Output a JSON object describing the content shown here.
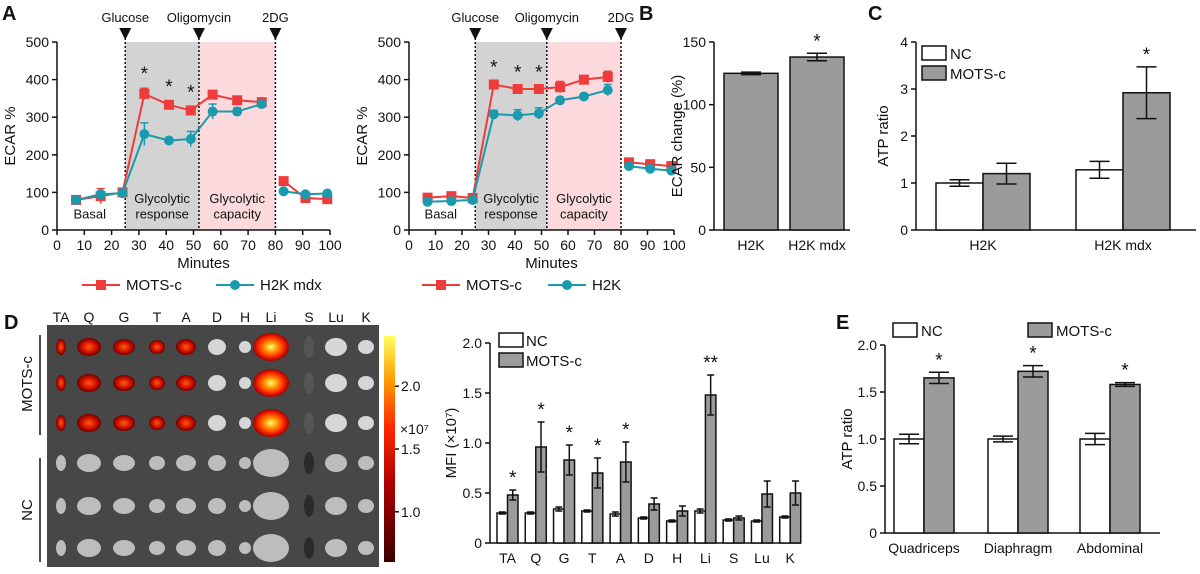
{
  "panels": {
    "A": "A",
    "B": "B",
    "C": "C",
    "D": "D",
    "E": "E"
  },
  "colors": {
    "mots": "#ee3b3b",
    "h2kmdx": "#1a9aad",
    "h2k": "#1a9aad",
    "nc": "#ffffff",
    "motsc_bar": "#9b9b9b",
    "glycolytic_response_shade": "#d3d3d3",
    "glycolytic_capacity_shade": "#fbd9dc"
  },
  "chart_data": [
    {
      "id": "A1",
      "type": "line",
      "xlabel": "Minutes",
      "ylabel": "ECAR %",
      "xlim": [
        0,
        100
      ],
      "ylim": [
        0,
        500
      ],
      "xticks": [
        "0",
        "10",
        "20",
        "30",
        "40",
        "50",
        "60",
        "70",
        "80",
        "90",
        "100"
      ],
      "yticks": [
        "0",
        "100",
        "200",
        "300",
        "400",
        "500"
      ],
      "injections": [
        {
          "label": "Glucose",
          "x": 25
        },
        {
          "label": "Oligomycin",
          "x": 52
        },
        {
          "label": "2DG",
          "x": 80
        }
      ],
      "phases": [
        {
          "label1": "Basal",
          "label2": ""
        },
        {
          "label1": "Glycolytic",
          "label2": "response"
        },
        {
          "label1": "Glycolytic",
          "label2": "capacity"
        }
      ],
      "series": [
        {
          "name": "MOTS-c",
          "color": "#ee3b3b",
          "marker": "square",
          "x": [
            7,
            16,
            24,
            32,
            41,
            49,
            57,
            66,
            75,
            83,
            91,
            99
          ],
          "y": [
            80,
            90,
            100,
            362,
            333,
            318,
            360,
            345,
            340,
            130,
            85,
            82
          ],
          "err": [
            4,
            20,
            5,
            15,
            10,
            10,
            8,
            8,
            8,
            5,
            5,
            4
          ]
        },
        {
          "name": "H2K mdx",
          "color": "#1a9aad",
          "marker": "circle",
          "x": [
            7,
            16,
            24,
            32,
            41,
            49,
            57,
            66,
            75,
            83,
            91,
            99
          ],
          "y": [
            80,
            95,
            98,
            255,
            238,
            242,
            315,
            315,
            335,
            103,
            95,
            97
          ],
          "err": [
            4,
            6,
            5,
            30,
            8,
            20,
            20,
            10,
            8,
            5,
            5,
            4
          ]
        }
      ],
      "significance": [
        {
          "x": 32,
          "label": "*"
        },
        {
          "x": 41,
          "label": "*"
        },
        {
          "x": 49,
          "label": "*"
        }
      ]
    },
    {
      "id": "A2",
      "type": "line",
      "xlabel": "Minutes",
      "ylabel": "ECAR %",
      "xlim": [
        0,
        100
      ],
      "ylim": [
        0,
        500
      ],
      "xticks": [
        "0",
        "10",
        "20",
        "30",
        "40",
        "50",
        "60",
        "70",
        "80",
        "90",
        "100"
      ],
      "yticks": [
        "0",
        "100",
        "200",
        "300",
        "400",
        "500"
      ],
      "injections": [
        {
          "label": "Glucose",
          "x": 25
        },
        {
          "label": "Oligomycin",
          "x": 52
        },
        {
          "label": "2DG",
          "x": 80
        }
      ],
      "phases": [
        {
          "label1": "Basal",
          "label2": ""
        },
        {
          "label1": "Glycolytic",
          "label2": "response"
        },
        {
          "label1": "Glycolytic",
          "label2": "capacity"
        }
      ],
      "series": [
        {
          "name": "MOTS-c",
          "color": "#ee3b3b",
          "marker": "square",
          "x": [
            7,
            16,
            24,
            32,
            41,
            49,
            57,
            66,
            75,
            83,
            91,
            99
          ],
          "y": [
            86,
            90,
            85,
            387,
            375,
            375,
            380,
            400,
            407,
            180,
            175,
            170
          ],
          "err": [
            5,
            5,
            5,
            8,
            6,
            6,
            15,
            8,
            15,
            6,
            5,
            5
          ]
        },
        {
          "name": "H2K",
          "color": "#1a9aad",
          "marker": "circle",
          "x": [
            7,
            16,
            24,
            32,
            41,
            49,
            57,
            66,
            75,
            83,
            91,
            99
          ],
          "y": [
            75,
            77,
            80,
            308,
            305,
            310,
            345,
            355,
            372,
            170,
            163,
            158
          ],
          "err": [
            4,
            4,
            4,
            10,
            15,
            15,
            8,
            8,
            15,
            6,
            5,
            4
          ]
        }
      ],
      "significance": [
        {
          "x": 32,
          "label": "*"
        },
        {
          "x": 41,
          "label": "*"
        },
        {
          "x": 49,
          "label": "*"
        }
      ]
    },
    {
      "id": "B",
      "type": "bar",
      "ylabel": "ECAR change (%)",
      "ylim": [
        0,
        150
      ],
      "yticks": [
        "0",
        "50",
        "100",
        "150"
      ],
      "categories": [
        "H2K",
        "H2K mdx"
      ],
      "values": [
        125,
        138
      ],
      "errors": [
        1,
        3
      ],
      "significance": [
        {
          "category": "H2K mdx",
          "label": "*"
        }
      ]
    },
    {
      "id": "C",
      "type": "bar",
      "ylabel": "ATP ratio",
      "ylim": [
        0,
        4
      ],
      "yticks": [
        "0",
        "1",
        "2",
        "3",
        "4"
      ],
      "categories": [
        "H2K",
        "H2K mdx"
      ],
      "series": [
        {
          "name": "NC",
          "values": [
            1.0,
            1.28
          ],
          "errors": [
            0.07,
            0.18
          ]
        },
        {
          "name": "MOTS-c",
          "values": [
            1.2,
            2.92
          ],
          "errors": [
            0.22,
            0.55
          ]
        }
      ],
      "significance": [
        {
          "category": "H2K mdx",
          "label": "*"
        }
      ]
    },
    {
      "id": "D-image",
      "type": "heatmap",
      "column_labels": [
        "TA",
        "Q",
        "G",
        "T",
        "A",
        "D",
        "H",
        "Li",
        "S",
        "Lu",
        "K"
      ],
      "row_groups": [
        "MOTS-c",
        "NC"
      ],
      "colorbar": {
        "ticks": [
          "2.0",
          "1.5",
          "1.0"
        ],
        "unit": "×10⁷",
        "range": [
          0.6,
          2.4
        ]
      }
    },
    {
      "id": "D",
      "type": "bar",
      "ylabel": "MFI (×10⁷)",
      "ylim": [
        0,
        2.0
      ],
      "yticks": [
        "0",
        "0.5",
        "1.0",
        "1.5",
        "2.0"
      ],
      "categories": [
        "TA",
        "Q",
        "G",
        "T",
        "A",
        "D",
        "H",
        "Li",
        "S",
        "Lu",
        "K"
      ],
      "series": [
        {
          "name": "NC",
          "values": [
            0.3,
            0.3,
            0.34,
            0.32,
            0.29,
            0.25,
            0.22,
            0.32,
            0.23,
            0.22,
            0.26
          ],
          "errors": [
            0.01,
            0.01,
            0.02,
            0.01,
            0.02,
            0.01,
            0.01,
            0.02,
            0.01,
            0.01,
            0.01
          ]
        },
        {
          "name": "MOTS-c",
          "values": [
            0.48,
            0.96,
            0.83,
            0.7,
            0.81,
            0.39,
            0.32,
            1.48,
            0.25,
            0.49,
            0.5
          ],
          "errors": [
            0.05,
            0.25,
            0.15,
            0.15,
            0.2,
            0.06,
            0.05,
            0.2,
            0.02,
            0.13,
            0.12
          ]
        }
      ],
      "significance": [
        {
          "category": "TA",
          "label": "*"
        },
        {
          "category": "Q",
          "label": "*"
        },
        {
          "category": "G",
          "label": "*"
        },
        {
          "category": "T",
          "label": "*"
        },
        {
          "category": "A",
          "label": "*"
        },
        {
          "category": "Li",
          "label": "**"
        }
      ]
    },
    {
      "id": "E",
      "type": "bar",
      "ylabel": "ATP ratio",
      "ylim": [
        0,
        2.0
      ],
      "yticks": [
        "0",
        "0.5",
        "1.0",
        "1.5",
        "2.0"
      ],
      "categories": [
        "Quadriceps",
        "Diaphragm",
        "Abdominal"
      ],
      "series": [
        {
          "name": "NC",
          "values": [
            1.0,
            1.0,
            1.0
          ],
          "errors": [
            0.05,
            0.03,
            0.06
          ]
        },
        {
          "name": "MOTS-c",
          "values": [
            1.65,
            1.72,
            1.58
          ],
          "errors": [
            0.06,
            0.06,
            0.02
          ]
        }
      ],
      "significance": [
        {
          "category": "Quadriceps",
          "label": "*"
        },
        {
          "category": "Diaphragm",
          "label": "*"
        },
        {
          "category": "Abdominal",
          "label": "*"
        }
      ]
    }
  ]
}
